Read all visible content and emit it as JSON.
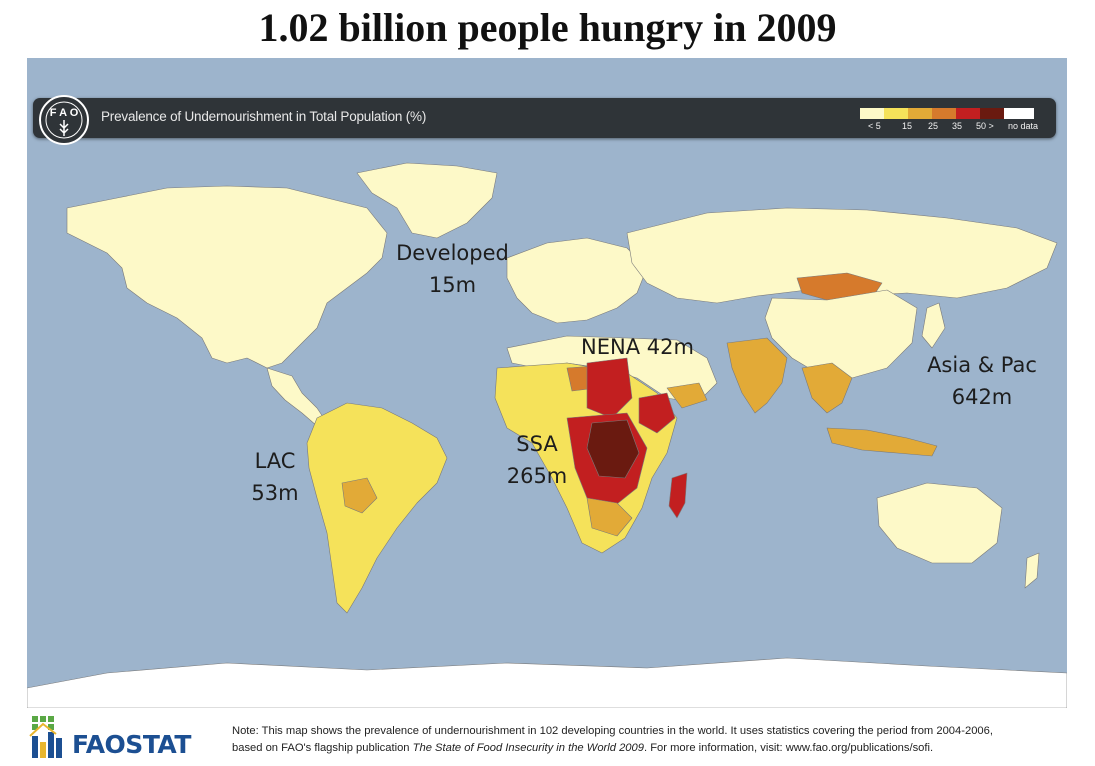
{
  "title": "1.02 billion people hungry in 2009",
  "map": {
    "header_title": "Prevalence of Undernourishment in Total Population (%)",
    "legend": {
      "labels": [
        "< 5",
        "15",
        "25",
        "35",
        "50 >",
        "no data"
      ],
      "colors": [
        "#fdf9c8",
        "#f5e25a",
        "#e2aa37",
        "#d67a2c",
        "#c21f20",
        "#6a1a10",
        "#ffffff"
      ]
    },
    "colors": {
      "ocean": "#9db4cc",
      "land_low": "#fdf9c8",
      "yellow": "#f5e25a",
      "gold": "#e2aa37",
      "orange": "#d67a2c",
      "red": "#c21f20",
      "darkred": "#6a1a10",
      "no_data": "#ffffff"
    },
    "regions": [
      {
        "name": "Developed",
        "value": "15m"
      },
      {
        "name": "NENA 42m",
        "value": ""
      },
      {
        "name": "Asia & Pac",
        "value": "642m"
      },
      {
        "name": "SSA",
        "value": "265m"
      },
      {
        "name": "LAC",
        "value": "53m"
      }
    ]
  },
  "footer": {
    "brand": "FAOSTAT",
    "note_line1": "Note: This map shows the prevalence of undernourishment in 102 developing countries in the world. It uses statistics covering the period from 2004-2006,",
    "note_line2_prefix": "based on FAO's flagship publication",
    "publication": "The State of Food Insecurity in the World 2009",
    "note_line2_suffix": ". For more information, visit: www.fao.org/publications/sofi."
  }
}
